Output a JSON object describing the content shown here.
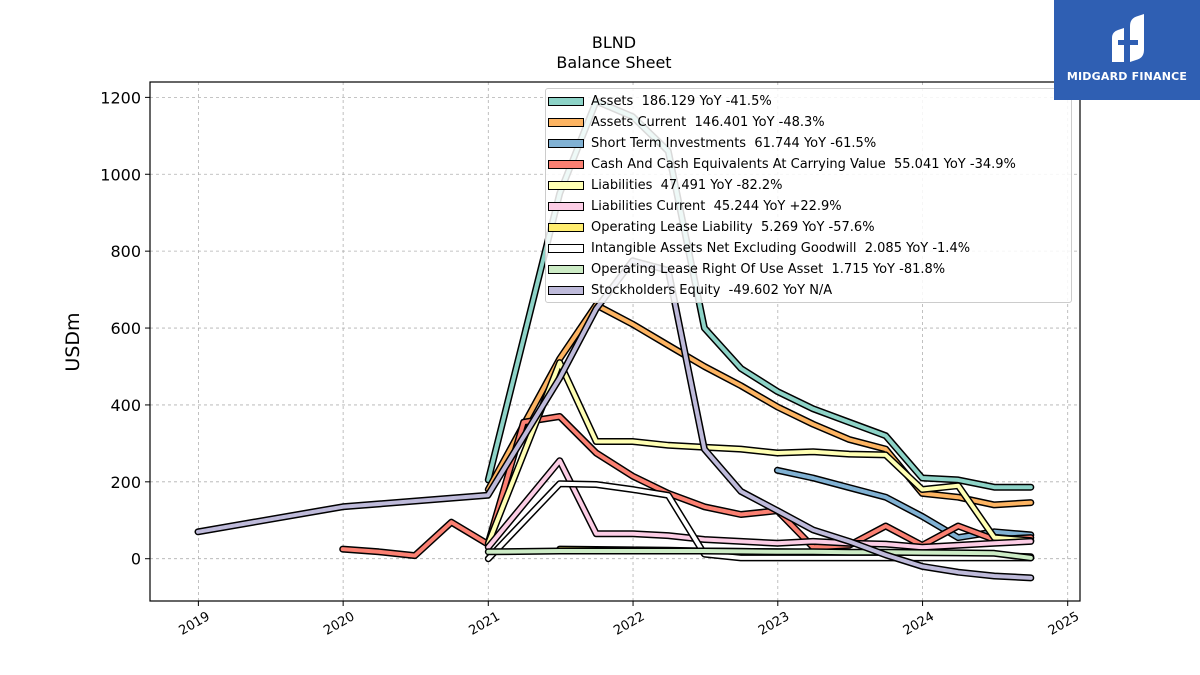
{
  "brand": {
    "name": "MIDGARD FINANCE",
    "bg_color": "#2f5fb3"
  },
  "chart_data": {
    "type": "line",
    "title": "BLND",
    "subtitle": "Balance  Sheet",
    "ylabel": "USDm",
    "xlabel": "",
    "ylim": [
      -110,
      1240
    ],
    "xlim": [
      "2018-09-01",
      "2025-02-01"
    ],
    "yticks": [
      0,
      200,
      400,
      600,
      800,
      1000,
      1200
    ],
    "xticks": [
      "2019",
      "2020",
      "2021",
      "2022",
      "2023",
      "2024",
      "2025"
    ],
    "grid": true,
    "legend_position": "top-right",
    "series": [
      {
        "name": "Assets  186.129 YoY -41.5%",
        "color": "#8dd3c7",
        "points": [
          [
            "2021-01-01",
            205
          ],
          [
            "2021-06-30",
            950
          ],
          [
            "2021-09-30",
            1190
          ],
          [
            "2021-12-31",
            1150
          ],
          [
            "2022-03-31",
            1060
          ],
          [
            "2022-06-30",
            600
          ],
          [
            "2022-09-30",
            495
          ],
          [
            "2022-12-31",
            435
          ],
          [
            "2023-03-31",
            390
          ],
          [
            "2023-06-30",
            355
          ],
          [
            "2023-09-30",
            320
          ],
          [
            "2023-12-31",
            210
          ],
          [
            "2024-03-31",
            205
          ],
          [
            "2024-06-30",
            186
          ],
          [
            "2024-09-30",
            186
          ]
        ]
      },
      {
        "name": "Assets Current  146.401 YoY -48.3%",
        "color": "#fdb462",
        "points": [
          [
            "2021-01-01",
            180
          ],
          [
            "2021-06-30",
            520
          ],
          [
            "2021-09-30",
            660
          ],
          [
            "2021-12-31",
            610
          ],
          [
            "2022-03-31",
            555
          ],
          [
            "2022-06-30",
            500
          ],
          [
            "2022-09-30",
            450
          ],
          [
            "2022-12-31",
            395
          ],
          [
            "2023-03-31",
            350
          ],
          [
            "2023-06-30",
            310
          ],
          [
            "2023-09-30",
            285
          ],
          [
            "2023-12-31",
            170
          ],
          [
            "2024-03-31",
            160
          ],
          [
            "2024-06-30",
            140
          ],
          [
            "2024-09-30",
            146
          ]
        ]
      },
      {
        "name": "Short Term Investments  61.744 YoY -61.5%",
        "color": "#80b1d3",
        "points": [
          [
            "2022-12-31",
            230
          ],
          [
            "2023-03-31",
            210
          ],
          [
            "2023-06-30",
            185
          ],
          [
            "2023-09-30",
            160
          ],
          [
            "2023-12-31",
            110
          ],
          [
            "2024-03-31",
            55
          ],
          [
            "2024-06-30",
            70
          ],
          [
            "2024-09-30",
            62
          ]
        ]
      },
      {
        "name": "Cash And Cash Equivalents At Carrying Value  55.041 YoY -34.9%",
        "color": "#fb8072",
        "points": [
          [
            "2019-12-31",
            25
          ],
          [
            "2020-03-31",
            18
          ],
          [
            "2020-06-30",
            8
          ],
          [
            "2020-09-30",
            95
          ],
          [
            "2020-12-31",
            38
          ],
          [
            "2021-03-31",
            355
          ],
          [
            "2021-06-30",
            370
          ],
          [
            "2021-09-30",
            275
          ],
          [
            "2021-12-31",
            215
          ],
          [
            "2022-03-31",
            170
          ],
          [
            "2022-06-30",
            135
          ],
          [
            "2022-09-30",
            115
          ],
          [
            "2022-12-31",
            125
          ],
          [
            "2023-03-31",
            30
          ],
          [
            "2023-06-30",
            35
          ],
          [
            "2023-09-30",
            85
          ],
          [
            "2023-12-31",
            35
          ],
          [
            "2024-03-31",
            85
          ],
          [
            "2024-06-30",
            50
          ],
          [
            "2024-09-30",
            55
          ]
        ]
      },
      {
        "name": "Liabilities  47.491 YoY -82.2%",
        "color": "#ffffb3",
        "points": [
          [
            "2021-01-01",
            40
          ],
          [
            "2021-06-30",
            510
          ],
          [
            "2021-09-30",
            305
          ],
          [
            "2021-12-31",
            305
          ],
          [
            "2022-03-31",
            295
          ],
          [
            "2022-06-30",
            290
          ],
          [
            "2022-09-30",
            285
          ],
          [
            "2022-12-31",
            275
          ],
          [
            "2023-03-31",
            278
          ],
          [
            "2023-06-30",
            272
          ],
          [
            "2023-09-30",
            270
          ],
          [
            "2023-12-31",
            180
          ],
          [
            "2024-03-31",
            190
          ],
          [
            "2024-06-30",
            55
          ],
          [
            "2024-09-30",
            47
          ]
        ]
      },
      {
        "name": "Liabilities Current  45.244 YoY +22.9%",
        "color": "#fccde5",
        "points": [
          [
            "2021-01-01",
            30
          ],
          [
            "2021-06-30",
            255
          ],
          [
            "2021-09-30",
            65
          ],
          [
            "2021-12-31",
            65
          ],
          [
            "2022-03-31",
            60
          ],
          [
            "2022-06-30",
            50
          ],
          [
            "2022-09-30",
            45
          ],
          [
            "2022-12-31",
            40
          ],
          [
            "2023-03-31",
            45
          ],
          [
            "2023-06-30",
            40
          ],
          [
            "2023-09-30",
            38
          ],
          [
            "2023-12-31",
            30
          ],
          [
            "2024-03-31",
            35
          ],
          [
            "2024-06-30",
            40
          ],
          [
            "2024-09-30",
            45
          ]
        ]
      },
      {
        "name": "Operating Lease Liability  5.269 YoY -57.6%",
        "color": "#ffed6f",
        "points": [
          [
            "2021-06-30",
            25
          ],
          [
            "2021-09-30",
            24
          ],
          [
            "2021-12-31",
            23
          ],
          [
            "2022-03-31",
            22
          ],
          [
            "2022-06-30",
            20
          ],
          [
            "2022-09-30",
            19
          ],
          [
            "2022-12-31",
            18
          ],
          [
            "2023-03-31",
            17
          ],
          [
            "2023-06-30",
            16
          ],
          [
            "2023-09-30",
            15
          ],
          [
            "2023-12-31",
            13
          ],
          [
            "2024-03-31",
            11
          ],
          [
            "2024-06-30",
            8
          ],
          [
            "2024-09-30",
            5
          ]
        ]
      },
      {
        "name": "Intangible Assets Net Excluding Goodwill  2.085 YoY -1.4%",
        "color": "#ffffff",
        "points": [
          [
            "2021-01-01",
            0
          ],
          [
            "2021-06-30",
            195
          ],
          [
            "2021-09-30",
            193
          ],
          [
            "2021-12-31",
            180
          ],
          [
            "2022-03-31",
            165
          ],
          [
            "2022-06-30",
            12
          ],
          [
            "2022-09-30",
            2
          ],
          [
            "2022-12-31",
            2
          ],
          [
            "2023-03-31",
            2
          ],
          [
            "2023-06-30",
            2
          ],
          [
            "2023-09-30",
            2
          ],
          [
            "2023-12-31",
            2
          ],
          [
            "2024-03-31",
            2
          ],
          [
            "2024-06-30",
            2
          ],
          [
            "2024-09-30",
            2
          ]
        ]
      },
      {
        "name": "Operating Lease Right Of Use Asset  1.715 YoY -81.8%",
        "color": "#ccebc5",
        "points": [
          [
            "2021-01-01",
            18
          ],
          [
            "2021-06-30",
            20
          ],
          [
            "2021-09-30",
            20
          ],
          [
            "2021-12-31",
            20
          ],
          [
            "2022-03-31",
            20
          ],
          [
            "2022-06-30",
            20
          ],
          [
            "2022-09-30",
            19
          ],
          [
            "2022-12-31",
            18
          ],
          [
            "2023-03-31",
            18
          ],
          [
            "2023-06-30",
            17
          ],
          [
            "2023-09-30",
            17
          ],
          [
            "2023-12-31",
            16
          ],
          [
            "2024-03-31",
            15
          ],
          [
            "2024-06-30",
            14
          ],
          [
            "2024-09-30",
            2
          ]
        ]
      },
      {
        "name": "Stockholders Equity  -49.602 YoY N/A",
        "color": "#bebada",
        "points": [
          [
            "2018-12-31",
            70
          ],
          [
            "2019-12-31",
            135
          ],
          [
            "2020-12-31",
            165
          ],
          [
            "2021-06-30",
            470
          ],
          [
            "2021-09-30",
            650
          ],
          [
            "2021-12-31",
            775
          ],
          [
            "2022-03-31",
            750
          ],
          [
            "2022-06-30",
            285
          ],
          [
            "2022-09-30",
            175
          ],
          [
            "2022-12-31",
            125
          ],
          [
            "2023-03-31",
            75
          ],
          [
            "2023-06-30",
            45
          ],
          [
            "2023-09-30",
            10
          ],
          [
            "2023-12-31",
            -20
          ],
          [
            "2024-03-31",
            -35
          ],
          [
            "2024-06-30",
            -45
          ],
          [
            "2024-09-30",
            -50
          ]
        ]
      }
    ]
  }
}
